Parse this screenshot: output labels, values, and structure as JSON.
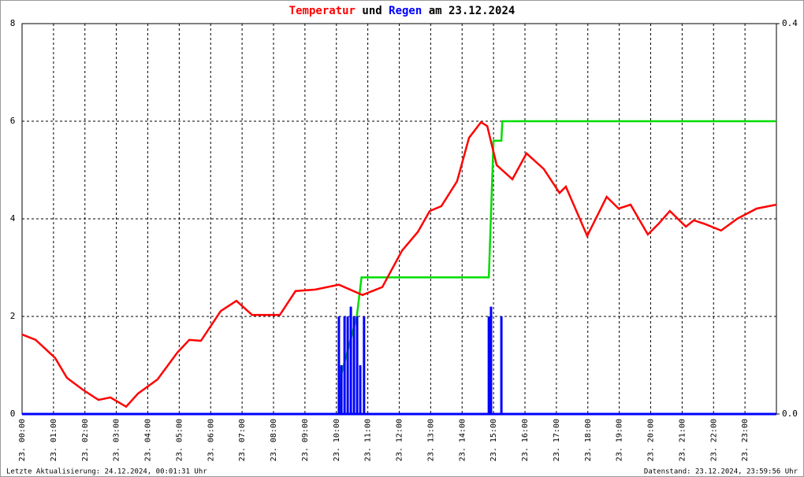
{
  "chart_data": {
    "type": "line",
    "title_parts": [
      "Temperatur",
      "und",
      "Regen",
      "am 23.12.2024"
    ],
    "footer_left": "Letzte Aktualisierung: 24.12.2024, 00:01:31 Uhr",
    "footer_right": "Datenstand: 23.12.2024, 23:59:56 Uhr",
    "xlim": [
      0,
      24
    ],
    "xticks": [
      {
        "value": 0,
        "label": "23. 00:00"
      },
      {
        "value": 1,
        "label": "23. 01:00"
      },
      {
        "value": 2,
        "label": "23. 02:00"
      },
      {
        "value": 3,
        "label": "23. 03:00"
      },
      {
        "value": 4,
        "label": "23. 04:00"
      },
      {
        "value": 5,
        "label": "23. 05:00"
      },
      {
        "value": 6,
        "label": "23. 06:00"
      },
      {
        "value": 7,
        "label": "23. 07:00"
      },
      {
        "value": 8,
        "label": "23. 08:00"
      },
      {
        "value": 9,
        "label": "23. 09:00"
      },
      {
        "value": 10,
        "label": "23. 10:00"
      },
      {
        "value": 11,
        "label": "23. 11:00"
      },
      {
        "value": 12,
        "label": "23. 12:00"
      },
      {
        "value": 13,
        "label": "23. 13:00"
      },
      {
        "value": 14,
        "label": "23. 14:00"
      },
      {
        "value": 15,
        "label": "23. 15:00"
      },
      {
        "value": 16,
        "label": "23. 16:00"
      },
      {
        "value": 17,
        "label": "23. 17:00"
      },
      {
        "value": 18,
        "label": "23. 18:00"
      },
      {
        "value": 19,
        "label": "23. 19:00"
      },
      {
        "value": 20,
        "label": "23. 20:00"
      },
      {
        "value": 21,
        "label": "23. 21:00"
      },
      {
        "value": 22,
        "label": "23. 22:00"
      },
      {
        "value": 23,
        "label": "23. 23:00"
      }
    ],
    "ylim": [
      0,
      8
    ],
    "yticks": [
      0,
      2,
      4,
      6,
      8
    ],
    "y2lim": [
      0,
      0.4
    ],
    "y2ticks": [
      {
        "value": 0,
        "label": "0.0"
      },
      {
        "value": 0.4,
        "label": "0.4"
      }
    ],
    "grid": true,
    "series": [
      {
        "name": "Temperatur",
        "type": "line",
        "color": "#ff0000",
        "x": [
          0,
          0.43,
          1.05,
          1.43,
          1.93,
          2.43,
          2.81,
          3.31,
          3.69,
          4.31,
          4.94,
          5.32,
          5.69,
          6.32,
          6.82,
          7.32,
          8.2,
          8.7,
          9.33,
          10.08,
          10.83,
          11.46,
          12.09,
          12.59,
          12.97,
          13.34,
          13.84,
          14.22,
          14.6,
          14.8,
          15.1,
          15.6,
          16.05,
          16.6,
          17.1,
          17.3,
          17.98,
          18.6,
          18.98,
          19.36,
          19.91,
          20.24,
          20.61,
          21.12,
          21.37,
          21.74,
          22.24,
          22.75,
          23.37,
          24
        ],
        "values": [
          1.63,
          1.52,
          1.15,
          0.74,
          0.5,
          0.29,
          0.34,
          0.15,
          0.42,
          0.71,
          1.26,
          1.52,
          1.5,
          2.11,
          2.32,
          2.03,
          2.03,
          2.52,
          2.55,
          2.65,
          2.44,
          2.6,
          3.35,
          3.73,
          4.16,
          4.26,
          4.77,
          5.66,
          5.98,
          5.9,
          5.1,
          4.81,
          5.34,
          5.02,
          4.53,
          4.66,
          3.65,
          4.45,
          4.21,
          4.29,
          3.68,
          3.89,
          4.16,
          3.84,
          3.97,
          3.89,
          3.76,
          4.0,
          4.21,
          4.29
        ]
      },
      {
        "name": "Regen",
        "type": "bar",
        "axis": "y2",
        "color": "#0000ff",
        "x": [
          10.08,
          10.16,
          10.26,
          10.36,
          10.46,
          10.56,
          10.66,
          10.76,
          10.88,
          14.85,
          14.92,
          15.25
        ],
        "values": [
          0.1,
          0.05,
          0.1,
          0.1,
          0.11,
          0.1,
          0.1,
          0.05,
          0.1,
          0.1,
          0.11,
          0.1
        ]
      },
      {
        "type": "line",
        "axis": "y2",
        "color": "#00dd00",
        "x": [
          0,
          10.1,
          10.15,
          10.65,
          10.8,
          14.85,
          15.0,
          15.25,
          15.28,
          24
        ],
        "values": [
          0,
          0,
          0.04,
          0.1,
          0.14,
          0.14,
          0.28,
          0.28,
          0.3,
          0.3
        ]
      }
    ]
  }
}
